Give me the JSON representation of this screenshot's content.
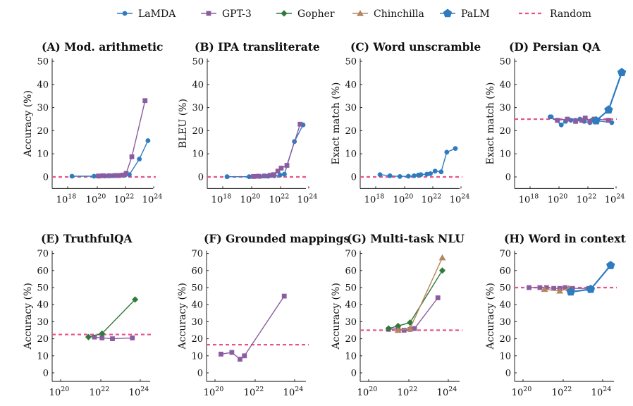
{
  "legend": [
    {
      "name": "LaMDA",
      "color": "#2e7bbf",
      "marker": "circle"
    },
    {
      "name": "GPT-3",
      "color": "#8c5ca0",
      "marker": "square"
    },
    {
      "name": "Gopher",
      "color": "#2f7a3a",
      "marker": "diamond"
    },
    {
      "name": "Chinchilla",
      "color": "#b5855f",
      "marker": "triangle"
    },
    {
      "name": "PaLM",
      "color": "#2e7bbf",
      "marker": "pentagon"
    },
    {
      "name": "Random",
      "color": "#e8528a",
      "marker": "dashed"
    }
  ],
  "chart_data": [
    {
      "type": "line",
      "title": "(A) Mod. arithmetic",
      "ylabel": "Accuracy (%)",
      "x_log": true,
      "xlim": [
        1e+18,
        1e+24
      ],
      "xticks": [
        "10^18",
        "10^20",
        "10^22",
        "10^24"
      ],
      "ylim": [
        -5,
        50
      ],
      "yticks": [
        0,
        10,
        20,
        30,
        40,
        50
      ],
      "random": 0,
      "series": [
        {
          "name": "LaMDA",
          "x": [
            2e+18,
            7e+19,
            1.5e+20,
            4e+20,
            1.5e+21,
            4e+21,
            1e+22,
            2e+22,
            1e+23,
            4e+23
          ],
          "y": [
            0.3,
            0.3,
            0.3,
            0.4,
            0.5,
            0.6,
            0.8,
            1.0,
            7.7,
            15.7
          ]
        },
        {
          "name": "GPT-3",
          "x": [
            1.4e+20,
            3e+20,
            8e+20,
            2e+21,
            3.6e+21,
            7e+21,
            1.2e+22,
            3e+22,
            2.5e+23
          ],
          "y": [
            0.4,
            0.5,
            0.5,
            0.6,
            0.6,
            0.8,
            1.5,
            8.7,
            33
          ]
        }
      ]
    },
    {
      "type": "line",
      "title": "(B) IPA transliterate",
      "ylabel": "BLEU (%)",
      "x_log": true,
      "xlim": [
        1e+18,
        1e+24
      ],
      "xticks": [
        "10^18",
        "10^20",
        "10^22",
        "10^24"
      ],
      "ylim": [
        -5,
        50
      ],
      "yticks": [
        0,
        10,
        20,
        30,
        40,
        50
      ],
      "random": 0,
      "series": [
        {
          "name": "LaMDA",
          "x": [
            2e+18,
            7e+19,
            1.5e+20,
            4e+20,
            1.5e+21,
            4e+21,
            1e+22,
            2e+22,
            1e+23,
            4e+23
          ],
          "y": [
            0.1,
            0.1,
            0.2,
            0.2,
            0.3,
            0.5,
            0.8,
            1.2,
            15.3,
            22.5
          ]
        },
        {
          "name": "GPT-3",
          "x": [
            1.4e+20,
            3e+20,
            8e+20,
            2e+21,
            3.6e+21,
            7e+21,
            1.2e+22,
            3e+22,
            2.5e+23
          ],
          "y": [
            0.2,
            0.3,
            0.4,
            0.7,
            1.0,
            2.5,
            3.8,
            5.0,
            22.8
          ]
        }
      ]
    },
    {
      "type": "line",
      "title": "(C) Word unscramble",
      "ylabel": "Exact match (%)",
      "x_log": true,
      "xlim": [
        1e+18,
        1e+24
      ],
      "xticks": [
        "10^18",
        "10^20",
        "10^22",
        "10^24"
      ],
      "ylim": [
        -5,
        50
      ],
      "yticks": [
        0,
        10,
        20,
        30,
        40,
        50
      ],
      "random": 0,
      "series": [
        {
          "name": "LaMDA",
          "x": [
            2e+18,
            1e+19,
            5e+19,
            2e+20,
            5e+20,
            1e+21,
            1.5e+21,
            4e+21,
            7e+21,
            1.5e+22,
            4e+22,
            1e+23,
            4e+23
          ],
          "y": [
            1.0,
            0.5,
            0.2,
            0.3,
            0.5,
            0.8,
            1.0,
            1.2,
            1.4,
            2.5,
            2.2,
            10.7,
            12.3
          ]
        }
      ]
    },
    {
      "type": "line",
      "title": "(D) Persian QA",
      "ylabel": "Exact match (%)",
      "x_log": true,
      "xlim": [
        1e+18,
        1e+24
      ],
      "xticks": [
        "10^18",
        "10^20",
        "10^22",
        "10^24"
      ],
      "ylim": [
        -5,
        50
      ],
      "yticks": [
        0,
        10,
        20,
        30,
        40,
        50
      ],
      "random": 25,
      "series": [
        {
          "name": "LaMDA",
          "x": [
            2.5e+19,
            3e+19,
            1.5e+20,
            3e+20,
            7e+20,
            1.5e+21,
            3e+21,
            6e+21,
            1.5e+22,
            2e+22,
            5e+23
          ],
          "y": [
            26,
            26,
            22.5,
            24,
            24.5,
            24.5,
            25,
            24,
            23.5,
            24.5,
            23.5
          ]
        },
        {
          "name": "GPT-3",
          "x": [
            8e+19,
            4e+20,
            1.5e+21,
            4e+21,
            7e+21,
            1.5e+22,
            3e+22,
            3e+23
          ],
          "y": [
            24.5,
            25,
            24,
            24.5,
            25.5,
            24,
            25,
            24.5
          ]
        },
        {
          "name": "PaLM",
          "x": [
            4e+22,
            3e+23,
            2.5e+24
          ],
          "y": [
            24.3,
            29,
            45.2
          ]
        }
      ]
    },
    {
      "type": "line",
      "title": "(E) TruthfulQA",
      "ylabel": "Accuracy (%)",
      "x_log": true,
      "xlim": [
        1e+19,
        1e+25
      ],
      "xticks": [
        "10^20",
        "10^22",
        "10^24"
      ],
      "ylim": [
        -5,
        70
      ],
      "yticks": [
        0,
        10,
        20,
        30,
        40,
        50,
        60,
        70
      ],
      "random": 22.5,
      "series": [
        {
          "name": "GPT-3",
          "x": [
            5e+21,
            1.2e+22,
            4e+22,
            4e+23
          ],
          "y": [
            21,
            20.5,
            20,
            20.5
          ]
        },
        {
          "name": "Gopher",
          "x": [
            2.5e+21,
            1.2e+22,
            5.5e+23
          ],
          "y": [
            21,
            23,
            43
          ]
        }
      ]
    },
    {
      "type": "line",
      "title": "(F) Grounded mappings",
      "ylabel": "Accuracy (%)",
      "x_log": true,
      "xlim": [
        1e+19,
        1e+25
      ],
      "xticks": [
        "10^20",
        "10^22",
        "10^24"
      ],
      "ylim": [
        -5,
        70
      ],
      "yticks": [
        0,
        10,
        20,
        30,
        40,
        50,
        60,
        70
      ],
      "random": 16.5,
      "series": [
        {
          "name": "GPT-3",
          "x": [
            2e+20,
            7e+20,
            1.8e+21,
            3e+21,
            3e+23
          ],
          "y": [
            11,
            12,
            8,
            10,
            45
          ]
        }
      ]
    },
    {
      "type": "line",
      "title": "(G) Multi-task NLU",
      "ylabel": "Accuracy (%)",
      "x_log": true,
      "xlim": [
        1e+19,
        1e+25
      ],
      "xticks": [
        "10^20",
        "10^22",
        "10^24"
      ],
      "ylim": [
        -5,
        70
      ],
      "yticks": [
        0,
        10,
        20,
        30,
        40,
        50,
        60,
        70
      ],
      "random": 25,
      "series": [
        {
          "name": "GPT-3",
          "x": [
            1e+21,
            3e+21,
            6e+21,
            1.2e+22,
            2e+22,
            3e+23
          ],
          "y": [
            25.5,
            26,
            25,
            25.5,
            26,
            44
          ]
        },
        {
          "name": "Gopher",
          "x": [
            1e+21,
            3e+21,
            1.2e+22,
            5e+23
          ],
          "y": [
            26,
            27.5,
            29.5,
            60
          ]
        },
        {
          "name": "Chinchilla",
          "x": [
            3e+21,
            1.2e+22,
            5e+23
          ],
          "y": [
            25,
            26,
            67.5
          ]
        }
      ]
    },
    {
      "type": "line",
      "title": "(H) Word in context",
      "ylabel": "Accuracy (%)",
      "x_log": true,
      "xlim": [
        1e+19,
        1e+25
      ],
      "xticks": [
        "10^20",
        "10^22",
        "10^24"
      ],
      "ylim": [
        -5,
        70
      ],
      "yticks": [
        0,
        10,
        20,
        30,
        40,
        50,
        60,
        70
      ],
      "random": 50,
      "series": [
        {
          "name": "GPT-3",
          "x": [
            2e+20,
            7e+20,
            1.5e+21,
            3.5e+21,
            7e+21,
            1.3e+22,
            3e+22,
            2e+23
          ],
          "y": [
            50,
            50,
            50,
            49.5,
            49.5,
            50,
            49.5,
            49.5
          ]
        },
        {
          "name": "Chinchilla",
          "x": [
            1.2e+21,
            7e+21,
            2e+22
          ],
          "y": [
            49,
            48,
            49.5
          ]
        },
        {
          "name": "PaLM",
          "x": [
            2.5e+22,
            2.5e+23,
            2.5e+24
          ],
          "y": [
            47.5,
            49,
            63
          ]
        }
      ]
    }
  ]
}
